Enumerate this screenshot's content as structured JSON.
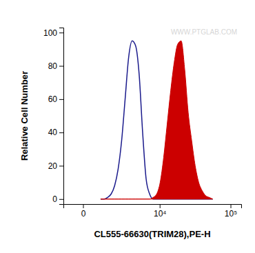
{
  "chart_data": {
    "type": "line",
    "x_label": "CL555-66630(TRIM28),PE-H",
    "y_label": "Relative Cell Number",
    "annotations": [
      "WWW.PTGLAB.COM"
    ],
    "log": "x",
    "x": [
      730,
      930,
      1154,
      1404,
      1683,
      1994,
      2341,
      2728,
      3160,
      3642,
      4180,
      4780,
      5450,
      6197,
      7032,
      7963,
      9000,
      10160,
      11450,
      12900,
      14510,
      16310,
      18310,
      20540,
      23040,
      25830,
      28940,
      32410,
      36280,
      40600,
      45420,
      50800,
      56800
    ],
    "series": [
      {
        "type": "line",
        "color": "#1a1a8c",
        "values": [
          0,
          0,
          1,
          3,
          8,
          18,
          35,
          60,
          85,
          95,
          92,
          75,
          40,
          12,
          3,
          0,
          0,
          0,
          0,
          0,
          0,
          0,
          0,
          0,
          0,
          0,
          0,
          0,
          0,
          0,
          0,
          0,
          0
        ]
      },
      {
        "type": "area",
        "color": "#cc0000",
        "values": [
          0,
          0,
          0,
          0,
          0,
          0,
          0,
          0,
          0,
          0,
          0,
          0,
          0,
          0,
          0,
          1,
          3,
          10,
          25,
          45,
          65,
          82,
          93,
          95,
          78,
          52,
          35,
          20,
          10,
          5,
          2,
          1,
          0
        ]
      }
    ],
    "xlim": [
      -850,
      140000
    ],
    "xticks": [
      0,
      {
        "value": 10000,
        "label": "10⁴"
      },
      {
        "value": 100000,
        "label": "10⁵"
      }
    ],
    "ylim": [
      -3,
      103
    ],
    "yticks": [
      0,
      20,
      40,
      60,
      80,
      100
    ]
  }
}
